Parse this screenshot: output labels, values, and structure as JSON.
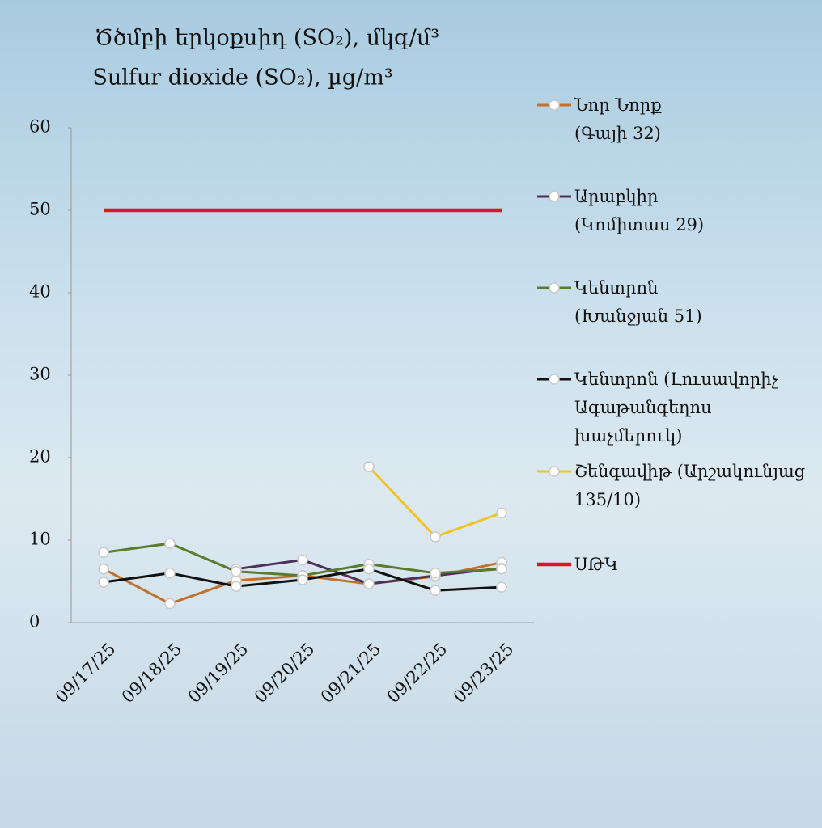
{
  "chart_data": {
    "type": "line",
    "title": "Ծծմբի երկօքսիդ (SO₂), մկգ/մ³",
    "subtitle": "Sulfur dioxide (SO₂), µg/m³",
    "categories": [
      "09/17/25",
      "09/18/25",
      "09/19/25",
      "09/20/25",
      "09/21/25",
      "09/22/25",
      "09/23/25"
    ],
    "series": [
      {
        "name": "Նոր Նորք (Գայի 32)",
        "color": "#c0712f",
        "values": [
          6.5,
          2.3,
          5.1,
          5.7,
          4.7,
          5.6,
          7.3
        ]
      },
      {
        "name": "Արաբկիր (Կոմիտաս 29)",
        "color": "#4d2f5c",
        "values": [
          null,
          null,
          6.5,
          7.6,
          4.7,
          5.7,
          6.6
        ]
      },
      {
        "name": "Կենտրոն (Խանջյան 51)",
        "color": "#5b7a2c",
        "values": [
          8.5,
          9.6,
          6.2,
          5.7,
          7.1,
          6.0,
          6.5
        ]
      },
      {
        "name": "Կենտրոն (Լուսավորիչ Ագաթանգեղոս խաչմերուկ)",
        "color": "#111111",
        "values": [
          4.9,
          6.0,
          4.4,
          5.2,
          6.5,
          3.9,
          4.3
        ]
      },
      {
        "name": "Շենգավիթ (Արշակունյաց 135/10)",
        "color": "#f0c424",
        "values": [
          null,
          null,
          null,
          null,
          18.9,
          10.4,
          13.3
        ]
      },
      {
        "name": "ՍԹԿ",
        "color": "#e0141a",
        "values": [
          50,
          50,
          50,
          50,
          50,
          50,
          50
        ]
      }
    ],
    "ylim": [
      0,
      60
    ],
    "yticks": [
      0,
      10,
      20,
      30,
      40,
      50,
      60
    ],
    "grid": false
  }
}
